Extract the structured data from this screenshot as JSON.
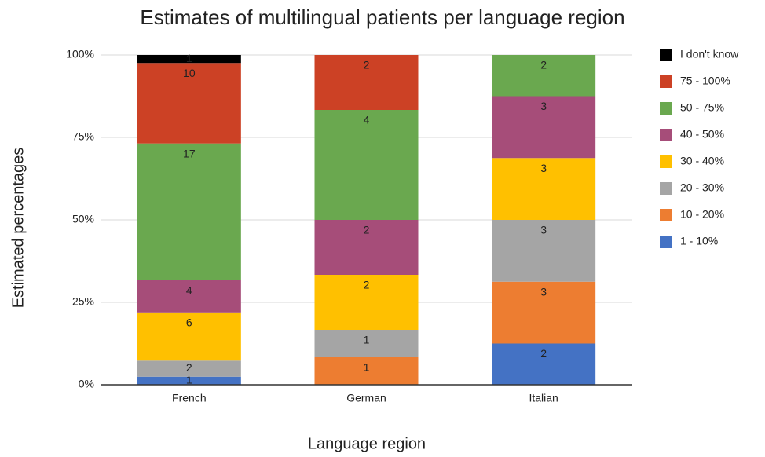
{
  "chart_data": {
    "type": "bar",
    "stacking": "percent",
    "title": "Estimates of multilingual patients per language region",
    "x_label": "Language region",
    "y_label": "Estimated percentages",
    "categories": [
      "French",
      "German",
      "Italian"
    ],
    "series": [
      {
        "name": "1 - 10%",
        "color": "#4472c4",
        "label_color": "#ffffff",
        "values": [
          1,
          null,
          2
        ]
      },
      {
        "name": "10 - 20%",
        "color": "#ed7d31",
        "label_color": "#000000",
        "values": [
          null,
          1,
          3
        ]
      },
      {
        "name": "20 - 30%",
        "color": "#a5a5a5",
        "label_color": "#000000",
        "values": [
          2,
          1,
          3
        ]
      },
      {
        "name": "30 - 40%",
        "color": "#ffc000",
        "label_color": "#000000",
        "values": [
          6,
          2,
          3
        ]
      },
      {
        "name": "40 - 50%",
        "color": "#a64d79",
        "label_color": "#ffffff",
        "values": [
          4,
          2,
          3
        ]
      },
      {
        "name": "50 - 75%",
        "color": "#6aa84f",
        "label_color": "#000000",
        "values": [
          17,
          4,
          2
        ]
      },
      {
        "name": "75 - 100%",
        "color": "#cc4125",
        "label_color": "#ffffff",
        "values": [
          10,
          2,
          null
        ]
      },
      {
        "name": "I don't know",
        "color": "#000000",
        "label_color": "#000000",
        "values": [
          1,
          null,
          null
        ]
      }
    ],
    "ylim": [
      0,
      100
    ],
    "yticks": [
      {
        "value": 0,
        "label": "0%"
      },
      {
        "value": 25,
        "label": "25%"
      },
      {
        "value": 50,
        "label": "50%"
      },
      {
        "value": 75,
        "label": "75%"
      },
      {
        "value": 100,
        "label": "100%"
      }
    ],
    "grid": true,
    "legend": "right"
  }
}
